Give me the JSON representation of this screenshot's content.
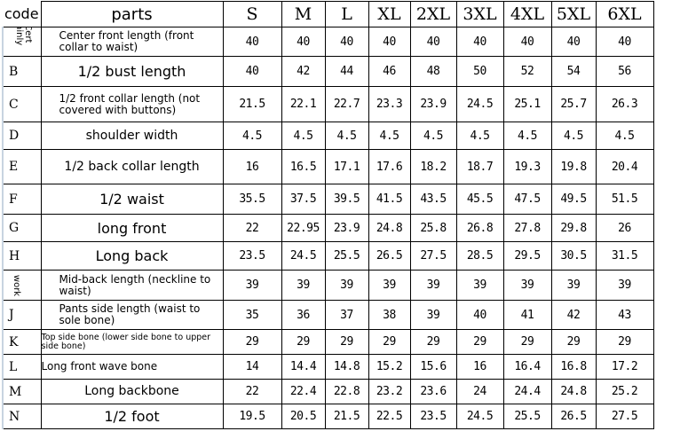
{
  "headers": {
    "code": "code",
    "parts": "parts",
    "sizes": [
      "S",
      "M",
      "L",
      "XL",
      "2XL",
      "3XL",
      "4XL",
      "5XL",
      "6XL"
    ]
  },
  "rows": [
    {
      "code": "Cert ainly",
      "part": "Center front length (front collar to waist)",
      "values": [
        "40",
        "40",
        "40",
        "40",
        "40",
        "40",
        "40",
        "40",
        "40"
      ]
    },
    {
      "code": "B",
      "part": "1/2 bust length",
      "values": [
        "40",
        "42",
        "44",
        "46",
        "48",
        "50",
        "52",
        "54",
        "56"
      ]
    },
    {
      "code": "C",
      "part": "1/2 front collar length (not covered with buttons)",
      "values": [
        "21.5",
        "22.1",
        "22.7",
        "23.3",
        "23.9",
        "24.5",
        "25.1",
        "25.7",
        "26.3"
      ]
    },
    {
      "code": "D",
      "part": "shoulder width",
      "values": [
        "4.5",
        "4.5",
        "4.5",
        "4.5",
        "4.5",
        "4.5",
        "4.5",
        "4.5",
        "4.5"
      ]
    },
    {
      "code": "E",
      "part": "1/2 back collar length",
      "values": [
        "16",
        "16.5",
        "17.1",
        "17.6",
        "18.2",
        "18.7",
        "19.3",
        "19.8",
        "20.4"
      ]
    },
    {
      "code": "F",
      "part": "1/2 waist",
      "values": [
        "35.5",
        "37.5",
        "39.5",
        "41.5",
        "43.5",
        "45.5",
        "47.5",
        "49.5",
        "51.5"
      ]
    },
    {
      "code": "G",
      "part": "long front",
      "values": [
        "22",
        "22.95",
        "23.9",
        "24.8",
        "25.8",
        "26.8",
        "27.8",
        "29.8",
        "26"
      ]
    },
    {
      "code": "H",
      "part": "Long back",
      "values": [
        "23.5",
        "24.5",
        "25.5",
        "26.5",
        "27.5",
        "28.5",
        "29.5",
        "30.5",
        "31.5"
      ]
    },
    {
      "code": "work",
      "part": "Mid-back length (neckline to waist)",
      "values": [
        "39",
        "39",
        "39",
        "39",
        "39",
        "39",
        "39",
        "39",
        "39"
      ]
    },
    {
      "code": "J",
      "part": "Pants side length (waist to sole bone)",
      "values": [
        "35",
        "36",
        "37",
        "38",
        "39",
        "40",
        "41",
        "42",
        "43"
      ]
    },
    {
      "code": "K",
      "part": "Top side bone (lower side bone to upper side bone)",
      "values": [
        "29",
        "29",
        "29",
        "29",
        "29",
        "29",
        "29",
        "29",
        "29"
      ]
    },
    {
      "code": "L",
      "part": "Long front wave bone",
      "values": [
        "14",
        "14.4",
        "14.8",
        "15.2",
        "15.6",
        "16",
        "16.4",
        "16.8",
        "17.2"
      ]
    },
    {
      "code": "M",
      "part": "Long backbone",
      "values": [
        "22",
        "22.4",
        "22.8",
        "23.2",
        "23.6",
        "24",
        "24.4",
        "24.8",
        "25.2"
      ]
    },
    {
      "code": "N",
      "part": "1/2 foot",
      "values": [
        "19.5",
        "20.5",
        "21.5",
        "22.5",
        "23.5",
        "24.5",
        "25.5",
        "26.5",
        "27.5"
      ]
    }
  ]
}
